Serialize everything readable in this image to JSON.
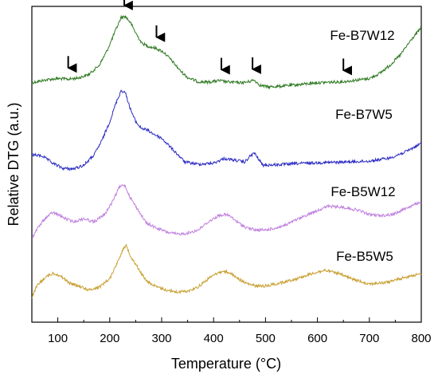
{
  "chart_data": {
    "type": "line",
    "xlabel": "Temperature (°C)",
    "ylabel": "Relative DTG (a.u.)",
    "xlim": [
      50,
      800
    ],
    "xticks": [
      "100",
      "200",
      "300",
      "400",
      "500",
      "600",
      "700",
      "800"
    ],
    "yticks_shown": false,
    "grid": false,
    "legend": "none",
    "series": [
      {
        "name": "Fe-B7W12",
        "color": "#2f7a22",
        "x": [
          50,
          80,
          100,
          120,
          140,
          160,
          180,
          195,
          210,
          222,
          230,
          240,
          250,
          262,
          275,
          290,
          305,
          320,
          335,
          350,
          370,
          390,
          410,
          430,
          450,
          465,
          478,
          490,
          505,
          530,
          560,
          600,
          650,
          700,
          720,
          740,
          760,
          780,
          800
        ],
        "y": [
          0.55,
          0.7,
          0.75,
          0.72,
          0.78,
          0.95,
          1.4,
          2.1,
          3.0,
          3.7,
          3.75,
          3.45,
          2.95,
          2.45,
          2.3,
          2.2,
          2.0,
          1.6,
          1.15,
          0.8,
          0.6,
          0.58,
          0.65,
          0.58,
          0.55,
          0.58,
          0.68,
          0.42,
          0.35,
          0.38,
          0.45,
          0.55,
          0.6,
          0.75,
          1.0,
          1.4,
          1.9,
          2.6,
          3.2
        ],
        "arrows_at_x": [
          120,
          228,
          290,
          415,
          475,
          650
        ]
      },
      {
        "name": "Fe-B7W5",
        "color": "#2c2cc4",
        "x": [
          50,
          70,
          90,
          110,
          130,
          150,
          170,
          185,
          200,
          212,
          222,
          230,
          240,
          250,
          260,
          272,
          285,
          300,
          320,
          345,
          370,
          400,
          420,
          440,
          460,
          470,
          478,
          485,
          495,
          520,
          560,
          600,
          650,
          700,
          740,
          770,
          800
        ],
        "y": [
          0.8,
          0.75,
          0.4,
          0.15,
          0.12,
          0.3,
          0.8,
          1.5,
          2.4,
          3.3,
          3.9,
          3.8,
          3.0,
          2.4,
          2.1,
          2.0,
          1.8,
          1.6,
          1.1,
          0.45,
          0.35,
          0.4,
          0.62,
          0.55,
          0.45,
          0.72,
          0.9,
          0.65,
          0.3,
          0.32,
          0.38,
          0.42,
          0.45,
          0.5,
          0.65,
          0.95,
          1.35
        ]
      },
      {
        "name": "Fe-B5W12",
        "color": "#c080de",
        "x": [
          50,
          60,
          75,
          90,
          100,
          115,
          130,
          150,
          170,
          190,
          205,
          218,
          228,
          240,
          255,
          270,
          290,
          310,
          330,
          350,
          370,
          390,
          410,
          420,
          430,
          445,
          460,
          480,
          500,
          520,
          540,
          560,
          590,
          620,
          650,
          680,
          700,
          720,
          745,
          770,
          800
        ],
        "y": [
          0.35,
          0.8,
          1.3,
          1.6,
          1.5,
          1.3,
          1.15,
          1.3,
          1.15,
          1.5,
          2.1,
          2.8,
          2.95,
          2.3,
          1.7,
          1.1,
          0.85,
          0.65,
          0.55,
          0.6,
          0.75,
          1.15,
          1.45,
          1.5,
          1.45,
          1.15,
          0.9,
          0.75,
          0.75,
          0.85,
          1.0,
          1.25,
          1.6,
          1.9,
          1.85,
          1.7,
          1.5,
          1.45,
          1.5,
          1.8,
          2.1
        ]
      },
      {
        "name": "Fe-B5W5",
        "color": "#c8a032",
        "x": [
          50,
          60,
          75,
          90,
          100,
          112,
          125,
          140,
          160,
          180,
          200,
          215,
          225,
          232,
          240,
          255,
          270,
          290,
          310,
          330,
          350,
          370,
          390,
          405,
          418,
          430,
          445,
          460,
          480,
          500,
          530,
          560,
          590,
          615,
          640,
          670,
          700,
          730,
          760,
          780,
          800
        ],
        "y": [
          0.2,
          0.75,
          1.15,
          1.35,
          1.3,
          1.1,
          0.85,
          0.75,
          0.55,
          0.7,
          1.1,
          1.9,
          2.5,
          2.7,
          2.2,
          1.6,
          1.0,
          0.7,
          0.55,
          0.45,
          0.5,
          0.7,
          1.1,
          1.35,
          1.45,
          1.4,
          1.15,
          0.9,
          0.75,
          0.75,
          0.9,
          1.1,
          1.35,
          1.5,
          1.35,
          1.05,
          0.85,
          0.9,
          1.1,
          1.25,
          1.3
        ]
      }
    ]
  }
}
